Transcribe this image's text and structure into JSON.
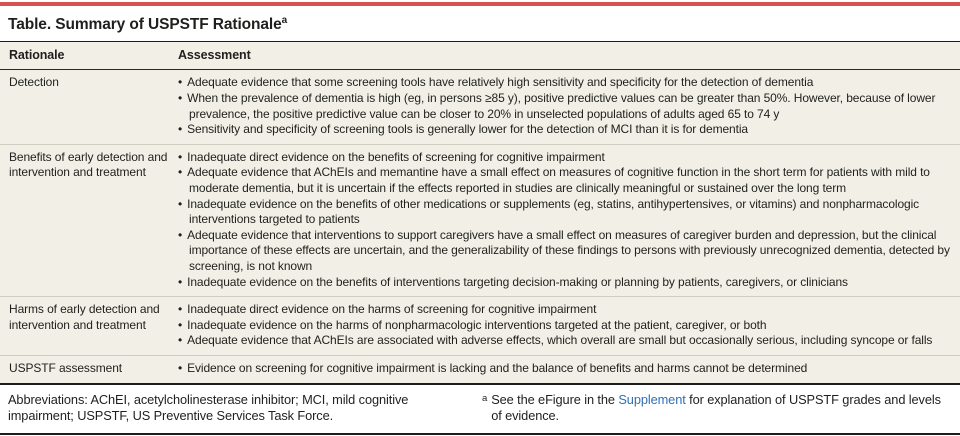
{
  "title": {
    "text": "Table. Summary of USPSTF Rationale",
    "superscript": "a"
  },
  "table": {
    "headers": {
      "rationale": "Rationale",
      "assessment": "Assessment"
    },
    "rows": [
      {
        "rationale": "Detection",
        "bullets": [
          "Adequate evidence that some screening tools have relatively high sensitivity and specificity for the detection of dementia",
          "When the prevalence of dementia is high (eg, in persons ≥85 y), positive predictive values can be greater than 50%. However, because of lower prevalence, the positive predictive value can be closer to 20% in unselected populations of adults aged 65 to 74 y",
          "Sensitivity and specificity of screening tools is generally lower for the detection of MCI than it is for dementia"
        ]
      },
      {
        "rationale": "Benefits of early detection and intervention and treatment",
        "bullets": [
          "Inadequate direct evidence on the benefits of screening for cognitive impairment",
          "Adequate evidence that AChEIs and memantine have a small effect on measures of cognitive function in the short term for patients with mild to moderate dementia, but it is uncertain if the effects reported in studies are clinically meaningful or sustained over the long term",
          "Inadequate evidence on the benefits of other medications or supplements (eg, statins, antihypertensives, or vitamins) and nonpharmacologic interventions targeted to patients",
          "Adequate evidence that interventions to support caregivers have a small effect on measures of caregiver burden and depression, but the clinical importance of these effects are uncertain, and the generalizability of these findings to persons with previously unrecognized dementia, detected by screening, is not known",
          "Inadequate evidence on the benefits of interventions targeting decision-making or planning by patients, caregivers, or clinicians"
        ]
      },
      {
        "rationale": "Harms of early detection and intervention and treatment",
        "bullets": [
          "Inadequate direct evidence on the harms of screening for cognitive impairment",
          "Inadequate evidence on the harms of nonpharmacologic interventions targeted at the patient, caregiver, or both",
          "Adequate evidence that AChEIs are associated with adverse effects, which overall are small but occasionally serious, including syncope or falls"
        ]
      },
      {
        "rationale": "USPSTF assessment",
        "bullets": [
          "Evidence on screening for cognitive impairment is lacking and the balance of benefits and harms cannot be determined"
        ]
      }
    ]
  },
  "footnotes": {
    "abbreviations": "Abbreviations: AChEI, acetylcholinesterase inhibitor; MCI, mild cognitive impairment; USPSTF, US Preventive Services Task Force.",
    "footnote_a": {
      "marker": "a",
      "pre_link": "See the eFigure in the ",
      "link_text": "Supplement",
      "post_link": " for explanation of USPSTF grades and levels of evidence."
    }
  },
  "colors": {
    "accent_red": "#d6534d",
    "table_bg": "#f2f0e6",
    "link_blue": "#2f6fb5"
  }
}
